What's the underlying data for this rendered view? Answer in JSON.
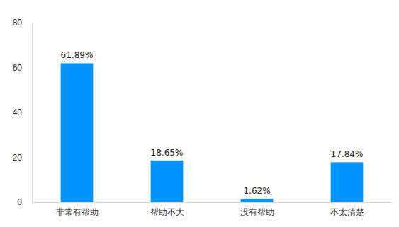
{
  "chart_data": {
    "type": "bar",
    "categories": [
      "非常有帮助",
      "帮助不大",
      "没有帮助",
      "不太清楚"
    ],
    "values": [
      61.89,
      18.65,
      1.62,
      17.84
    ],
    "value_labels": [
      "61.89%",
      "18.65%",
      "1.62%",
      "17.84%"
    ],
    "color": "#0094ff",
    "ylim": [
      0,
      80
    ],
    "yticks": [
      0,
      20,
      40,
      60,
      80
    ],
    "grid": false,
    "data_labels": true
  }
}
